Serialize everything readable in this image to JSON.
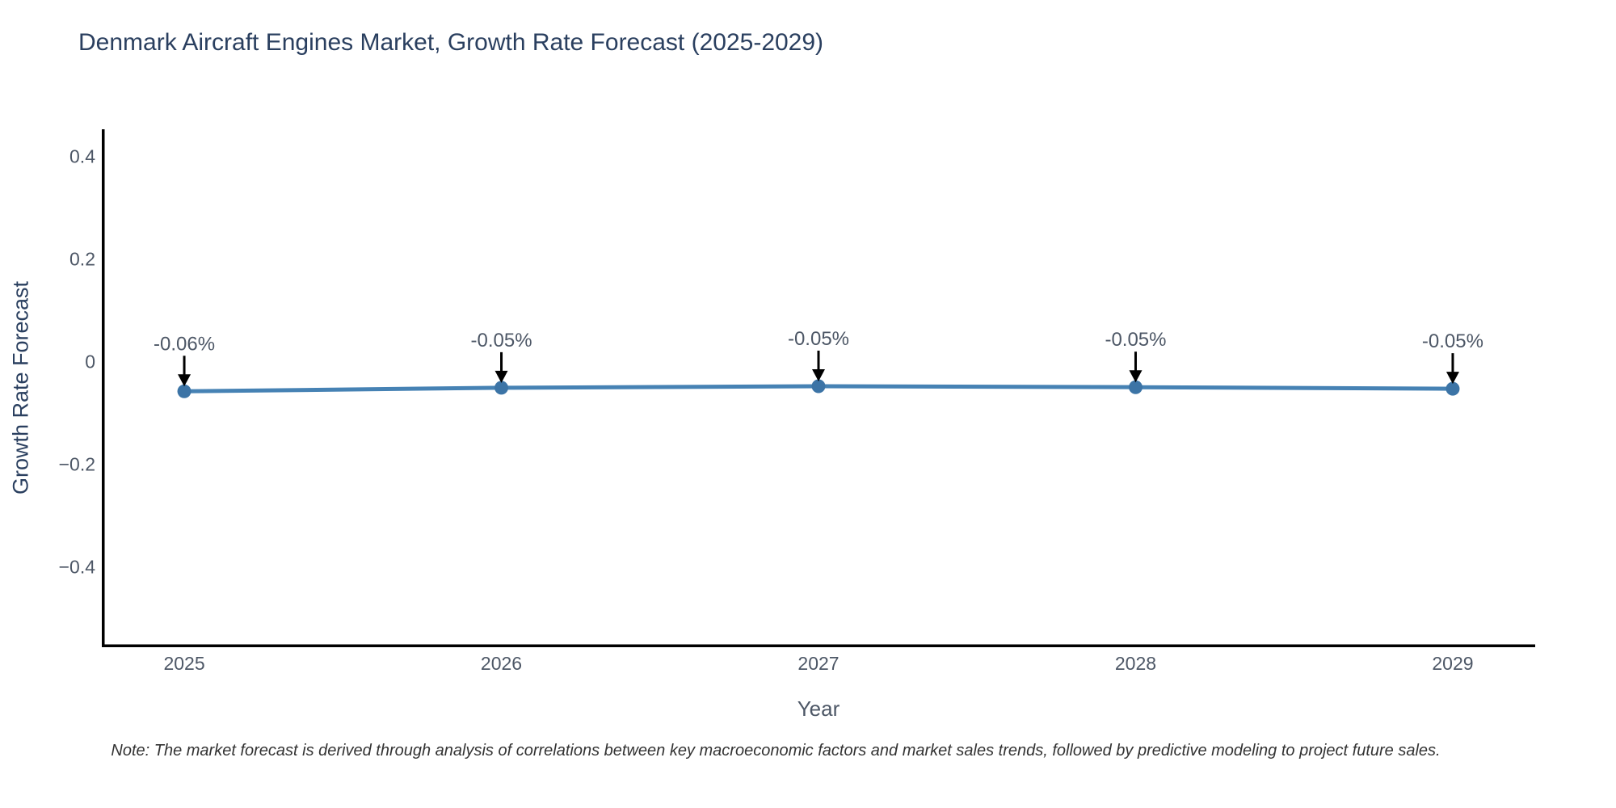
{
  "chart_data": {
    "type": "line",
    "title": "Denmark Aircraft Engines Market, Growth Rate Forecast (2025-2029)",
    "xlabel": "Year",
    "ylabel": "Growth Rate Forecast",
    "note": "Note: The market forecast is derived through analysis of correlations between key macroeconomic factors and market sales trends, followed by predictive modeling to project future sales.",
    "x": [
      2025,
      2026,
      2027,
      2028,
      2029
    ],
    "x_tick_labels": [
      "2025",
      "2026",
      "2027",
      "2028",
      "2029"
    ],
    "values": [
      -0.057,
      -0.05,
      -0.047,
      -0.049,
      -0.052
    ],
    "point_labels": [
      "-0.06%",
      "-0.05%",
      "-0.05%",
      "-0.05%",
      "-0.05%"
    ],
    "y_ticks": [
      0.4,
      0.2,
      0,
      -0.2,
      -0.4
    ],
    "y_tick_labels": [
      "0.4",
      "0.2",
      "0",
      "−0.2",
      "−0.4"
    ],
    "x_range": [
      2024.74,
      2029.26
    ],
    "y_range": [
      -0.556,
      0.454
    ],
    "grid": false,
    "legend": "none",
    "marker_radius": 8.5,
    "line_width": 5,
    "colors": {
      "line": "#4682b4",
      "marker": "#3c74a6",
      "arrow": "#000000",
      "axis_line": "#000000",
      "title_text": "#2a3f5f",
      "tick_text": "#4d5766",
      "note_text": "#333333"
    }
  }
}
